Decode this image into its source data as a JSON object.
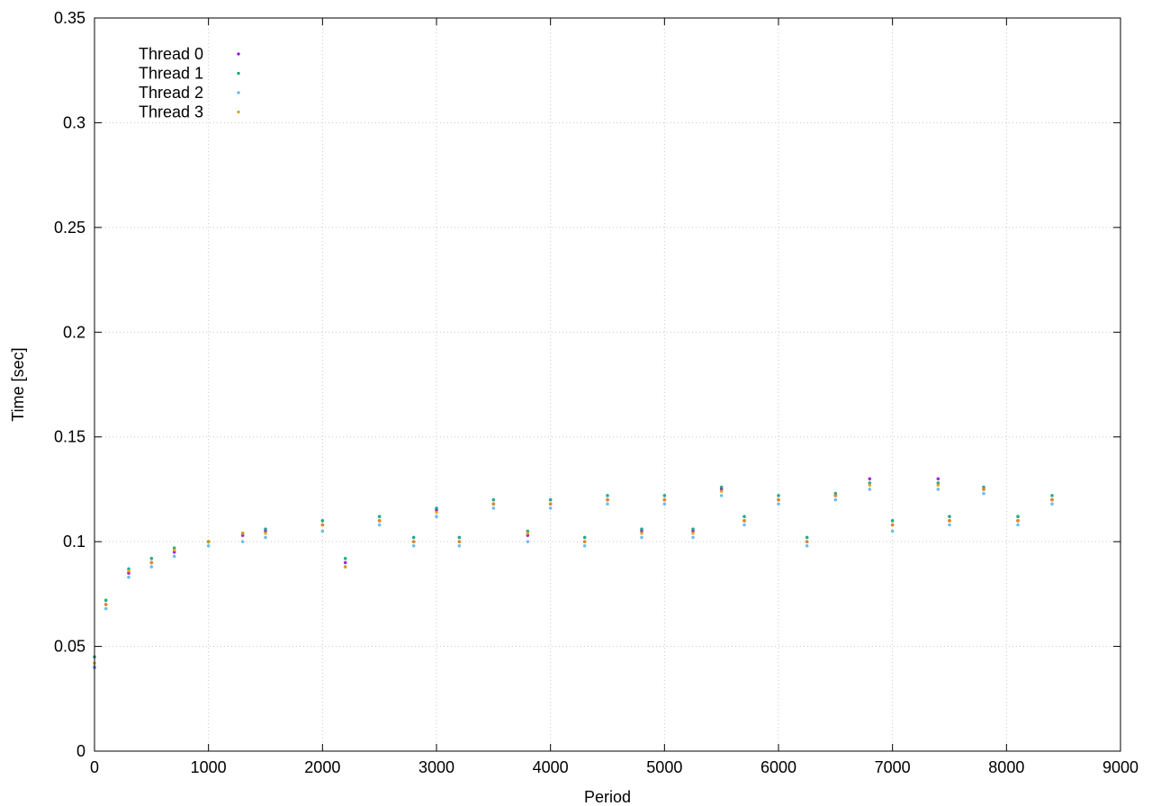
{
  "chart_data": {
    "type": "scatter",
    "title": "",
    "xlabel": "Period",
    "ylabel": "Time [sec]",
    "xlim": [
      0,
      9000
    ],
    "ylim": [
      0,
      0.35
    ],
    "xticks": [
      0,
      1000,
      2000,
      3000,
      4000,
      5000,
      6000,
      7000,
      8000,
      9000
    ],
    "yticks": [
      0,
      0.05,
      0.1,
      0.15,
      0.2,
      0.25,
      0.3,
      0.35
    ],
    "xtick_labels": [
      "0",
      "1000",
      "2000",
      "3000",
      "4000",
      "5000",
      "6000",
      "7000",
      "8000",
      "9000"
    ],
    "ytick_labels": [
      "0",
      "0.05",
      "0.1",
      "0.15",
      "0.2",
      "0.25",
      "0.3",
      "0.35"
    ],
    "grid": true,
    "legend_position": "top-left",
    "series": [
      {
        "name": "Thread 0",
        "color": "#9400d3",
        "x": [
          0,
          100,
          300,
          500,
          700,
          1000,
          1300,
          1500,
          2000,
          2200,
          2500,
          2800,
          3000,
          3200,
          3500,
          3800,
          4000,
          4300,
          4500,
          4800,
          5000,
          5250,
          5500,
          5700,
          6000,
          6250,
          6500,
          6800,
          7000,
          7400,
          7500,
          7800,
          8100,
          8400
        ],
        "y": [
          0.04,
          0.07,
          0.085,
          0.09,
          0.095,
          0.1,
          0.103,
          0.105,
          0.108,
          0.09,
          0.11,
          0.1,
          0.115,
          0.1,
          0.118,
          0.103,
          0.118,
          0.1,
          0.12,
          0.105,
          0.12,
          0.105,
          0.125,
          0.11,
          0.12,
          0.1,
          0.122,
          0.13,
          0.108,
          0.13,
          0.11,
          0.125,
          0.11,
          0.12
        ]
      },
      {
        "name": "Thread 1",
        "color": "#009e73",
        "x": [
          0,
          100,
          300,
          500,
          700,
          1000,
          1300,
          1500,
          2000,
          2200,
          2500,
          2800,
          3000,
          3200,
          3500,
          3800,
          4000,
          4300,
          4500,
          4800,
          5000,
          5250,
          5500,
          5700,
          6000,
          6250,
          6500,
          6800,
          7000,
          7400,
          7500,
          7800,
          8100,
          8400
        ],
        "y": [
          0.045,
          0.072,
          0.087,
          0.092,
          0.097,
          0.1,
          0.104,
          0.106,
          0.11,
          0.092,
          0.112,
          0.102,
          0.116,
          0.102,
          0.12,
          0.105,
          0.12,
          0.102,
          0.122,
          0.106,
          0.122,
          0.106,
          0.126,
          0.112,
          0.122,
          0.102,
          0.123,
          0.128,
          0.11,
          0.128,
          0.112,
          0.126,
          0.112,
          0.122
        ]
      },
      {
        "name": "Thread 2",
        "color": "#56b4e9",
        "x": [
          0,
          100,
          300,
          500,
          700,
          1000,
          1300,
          1500,
          2000,
          2200,
          2500,
          2800,
          3000,
          3200,
          3500,
          3800,
          4000,
          4300,
          4500,
          4800,
          5000,
          5250,
          5500,
          5700,
          6000,
          6250,
          6500,
          6800,
          7000,
          7400,
          7500,
          7800,
          8100,
          8400
        ],
        "y": [
          0.04,
          0.068,
          0.083,
          0.088,
          0.093,
          0.098,
          0.1,
          0.102,
          0.105,
          0.088,
          0.108,
          0.098,
          0.112,
          0.098,
          0.116,
          0.1,
          0.116,
          0.098,
          0.118,
          0.102,
          0.118,
          0.102,
          0.122,
          0.108,
          0.118,
          0.098,
          0.12,
          0.125,
          0.105,
          0.125,
          0.108,
          0.123,
          0.108,
          0.118
        ]
      },
      {
        "name": "Thread 3",
        "color": "#e69f00",
        "x": [
          0,
          100,
          300,
          500,
          700,
          1000,
          1300,
          1500,
          2000,
          2200,
          2500,
          2800,
          3000,
          3200,
          3500,
          3800,
          4000,
          4300,
          4500,
          4800,
          5000,
          5250,
          5500,
          5700,
          6000,
          6250,
          6500,
          6800,
          7000,
          7400,
          7500,
          7800,
          8100,
          8400
        ],
        "y": [
          0.042,
          0.07,
          0.086,
          0.09,
          0.096,
          0.1,
          0.104,
          0.104,
          0.108,
          0.088,
          0.11,
          0.1,
          0.114,
          0.1,
          0.118,
          0.104,
          0.118,
          0.1,
          0.12,
          0.104,
          0.12,
          0.104,
          0.124,
          0.11,
          0.12,
          0.1,
          0.122,
          0.127,
          0.108,
          0.127,
          0.11,
          0.125,
          0.11,
          0.12
        ]
      }
    ]
  }
}
